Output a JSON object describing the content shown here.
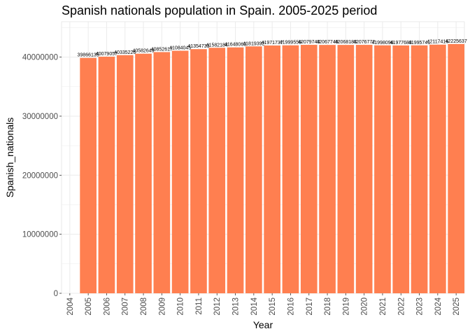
{
  "chart_data": {
    "type": "bar",
    "title": "Spanish nationals population in Spain. 2005-2025 period",
    "xlabel": "Year",
    "ylabel": "Spanish_nationals",
    "categories": [
      "2005",
      "2006",
      "2007",
      "2008",
      "2009",
      "2010",
      "2011",
      "2012",
      "2013",
      "2014",
      "2015",
      "2016",
      "2017",
      "2018",
      "2019",
      "2020",
      "2021",
      "2022",
      "2023",
      "2024",
      "2025"
    ],
    "values": [
      39866135,
      40079057,
      40335226,
      40582649,
      40852617,
      41084045,
      41354733,
      41582184,
      41648063,
      41819392,
      41971737,
      41999559,
      42079743,
      42067749,
      42068183,
      42076772,
      41998096,
      41977683,
      41995741,
      42117416,
      42225637
    ],
    "labels": [
      "39866135",
      "40079057",
      "40335226",
      "40582649",
      "40852617",
      "41084045",
      "41354733",
      "41582184",
      "41648063",
      "41819392",
      "41971737",
      "41999559",
      "42079743",
      "42067749",
      "42068183",
      "42076772",
      "41998096",
      "41977683",
      "41995741",
      "42117416",
      "42225637"
    ],
    "x_ticks": [
      "2004",
      "2005",
      "2006",
      "2007",
      "2008",
      "2009",
      "2010",
      "2011",
      "2012",
      "2013",
      "2014",
      "2015",
      "2016",
      "2017",
      "2018",
      "2019",
      "2020",
      "2021",
      "2022",
      "2023",
      "2024",
      "2025"
    ],
    "y_ticks": [
      0,
      10000000,
      20000000,
      30000000,
      40000000
    ],
    "y_tick_labels": [
      "0",
      "10000000",
      "20000000",
      "30000000",
      "40000000"
    ],
    "ylim": [
      0,
      46000000
    ],
    "xlim": [
      2003.55,
      2025.45
    ],
    "grid": true,
    "legend": "none",
    "bar_color": "#FF7F50",
    "panel_background": "#ffffff",
    "grid_color": "#ebebeb"
  }
}
